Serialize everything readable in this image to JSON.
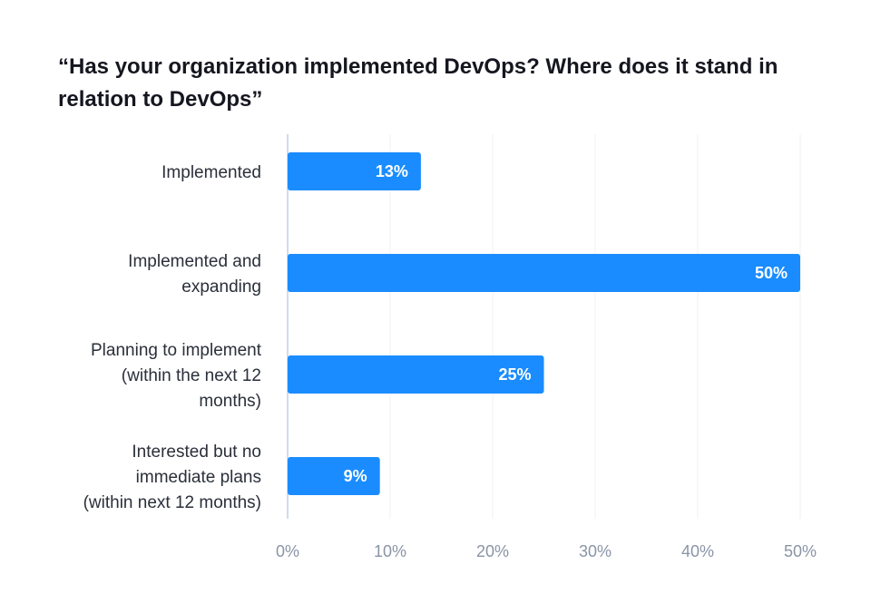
{
  "title": "“Has your organization implemented DevOps? Where does it stand in relation to DevOps”",
  "chart_data": {
    "type": "bar",
    "orientation": "horizontal",
    "title": "“Has your organization implemented DevOps? Where does it stand in relation to DevOps”",
    "categories": [
      [
        "Implemented"
      ],
      [
        "Implemented and",
        "expanding"
      ],
      [
        "Planning to implement",
        "(within the next 12",
        "months)"
      ],
      [
        "Interested but no",
        "immediate plans",
        "(within next 12 months)"
      ]
    ],
    "values": [
      13,
      50,
      25,
      9
    ],
    "value_labels": [
      "13%",
      "50%",
      "25%",
      "9%"
    ],
    "xlim": [
      0,
      50
    ],
    "ticks": [
      "0%",
      "10%",
      "20%",
      "30%",
      "40%",
      "50%"
    ],
    "grid": true,
    "bar_color": "#1a8cff"
  }
}
